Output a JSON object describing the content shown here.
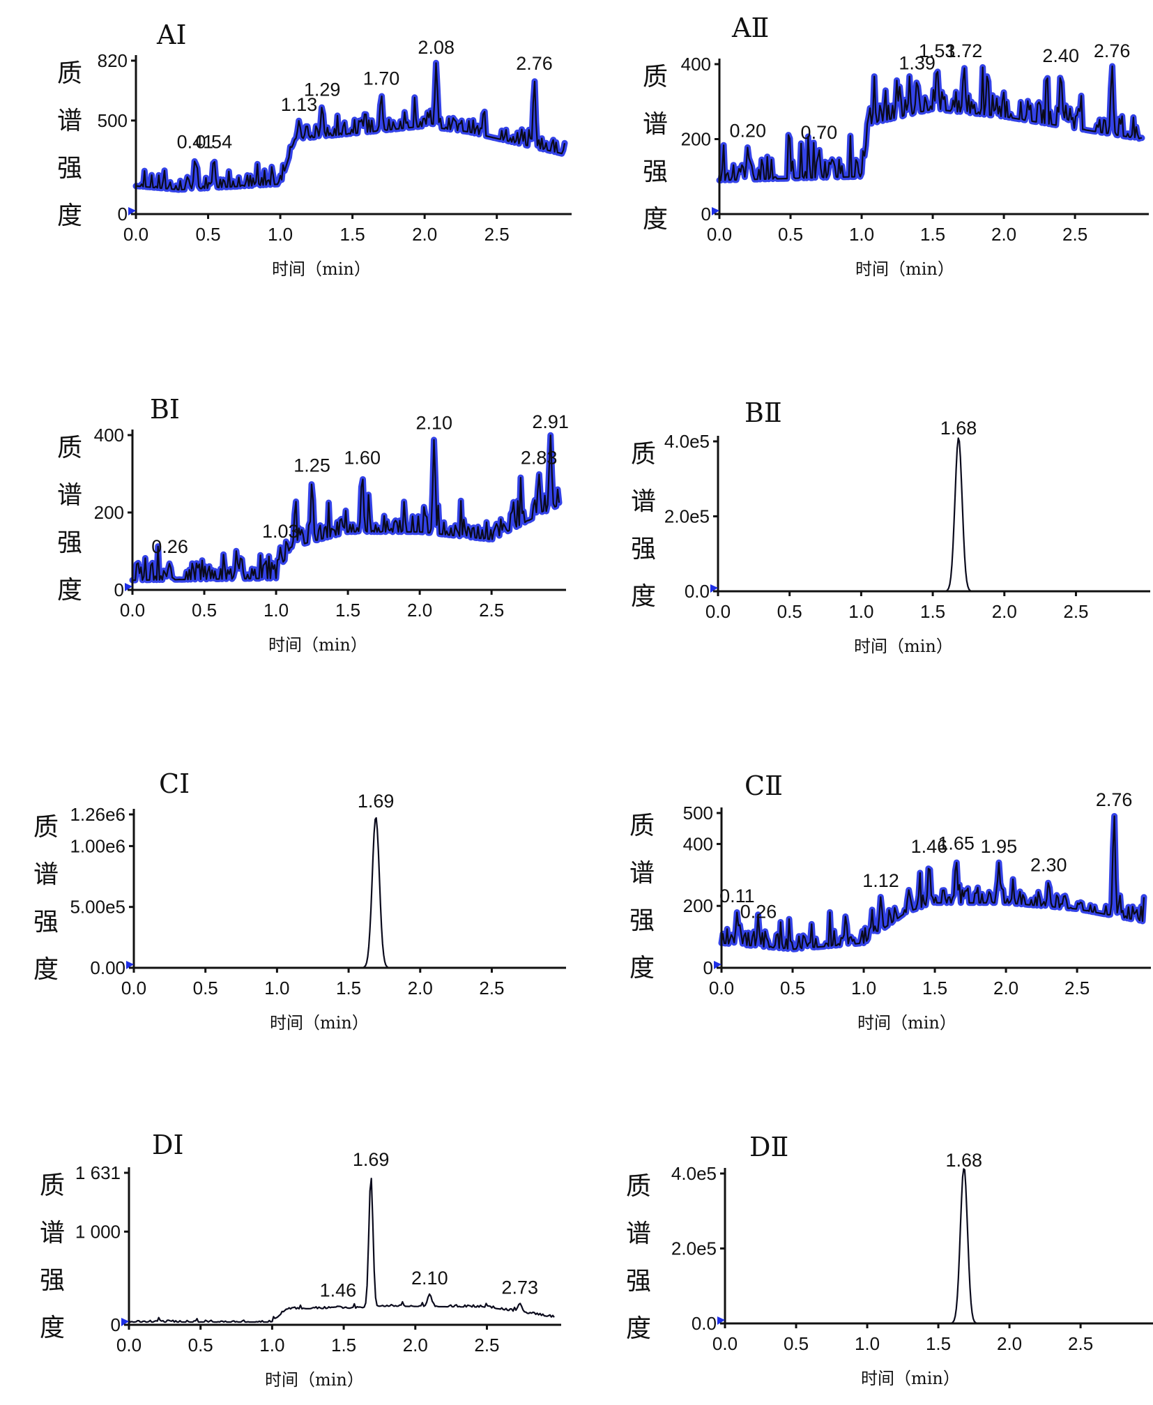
{
  "x_axis_label": "时间（min）",
  "y_axis_label_chars": [
    "质",
    "谱",
    "强",
    "度"
  ],
  "colors": {
    "trace_band": "#1e2fe6",
    "trace_line": "#0a0a1c",
    "axis": "#111111"
  },
  "chart_data": [
    {
      "type": "line",
      "title": "AⅠ",
      "x_ticks": [
        "0.0",
        "0.5",
        "1.0",
        "1.5",
        "2.0",
        "2.5"
      ],
      "y_ticks": [
        {
          "value": 0,
          "label": "0"
        },
        {
          "value": 500,
          "label": "500"
        },
        {
          "value": 820,
          "label": "820"
        }
      ],
      "xlim": [
        0,
        2.97
      ],
      "ylim": [
        0,
        820
      ],
      "peaks": [
        {
          "x": 0.41,
          "y": 300,
          "label": "0.41"
        },
        {
          "x": 0.54,
          "y": 300,
          "label": "0.54"
        },
        {
          "x": 1.13,
          "y": 500,
          "label": "1.13"
        },
        {
          "x": 1.29,
          "y": 580,
          "label": "1.29"
        },
        {
          "x": 1.7,
          "y": 640,
          "label": "1.70"
        },
        {
          "x": 2.08,
          "y": 810,
          "label": "2.08"
        },
        {
          "x": 2.76,
          "y": 720,
          "label": "2.76"
        }
      ],
      "noise": true,
      "baseline": [
        [
          0,
          150
        ],
        [
          0.3,
          130
        ],
        [
          1.0,
          160
        ],
        [
          1.1,
          400
        ],
        [
          1.5,
          430
        ],
        [
          2.0,
          470
        ],
        [
          2.3,
          440
        ],
        [
          2.97,
          320
        ]
      ],
      "noise_amp": 70
    },
    {
      "type": "line",
      "title": "AⅡ",
      "x_ticks": [
        "0.0",
        "0.5",
        "1.0",
        "1.5",
        "2.0",
        "2.5"
      ],
      "y_ticks": [
        {
          "value": 0,
          "label": "0"
        },
        {
          "value": 200,
          "label": "200"
        },
        {
          "value": 400,
          "label": "400"
        }
      ],
      "xlim": [
        0,
        2.97
      ],
      "ylim": [
        0,
        400
      ],
      "peaks": [
        {
          "x": 0.2,
          "y": 180,
          "label": "0.20"
        },
        {
          "x": 0.7,
          "y": 175,
          "label": "0.70"
        },
        {
          "x": 1.39,
          "y": 360,
          "label": "1.39"
        },
        {
          "x": 1.53,
          "y": 395,
          "label": "1.53"
        },
        {
          "x": 1.72,
          "y": 395,
          "label": "1.72"
        },
        {
          "x": 2.4,
          "y": 380,
          "label": "2.40"
        },
        {
          "x": 2.76,
          "y": 400,
          "label": "2.76"
        }
      ],
      "noise": true,
      "baseline": [
        [
          0,
          90
        ],
        [
          1.0,
          100
        ],
        [
          1.05,
          240
        ],
        [
          1.5,
          280
        ],
        [
          2.0,
          260
        ],
        [
          2.97,
          200
        ]
      ],
      "noise_amp": 55
    },
    {
      "type": "line",
      "title": "BⅠ",
      "x_ticks": [
        "0.0",
        "0.5",
        "1.0",
        "1.5",
        "2.0",
        "2.5"
      ],
      "y_ticks": [
        {
          "value": 0,
          "label": "0"
        },
        {
          "value": 200,
          "label": "200"
        },
        {
          "value": 400,
          "label": "400"
        }
      ],
      "xlim": [
        0,
        2.97
      ],
      "ylim": [
        0,
        400
      ],
      "peaks": [
        {
          "x": 0.26,
          "y": 70,
          "label": "0.26"
        },
        {
          "x": 1.03,
          "y": 110,
          "label": "1.03"
        },
        {
          "x": 1.25,
          "y": 280,
          "label": "1.25"
        },
        {
          "x": 1.6,
          "y": 300,
          "label": "1.60"
        },
        {
          "x": 2.1,
          "y": 390,
          "label": "2.10"
        },
        {
          "x": 2.83,
          "y": 300,
          "label": "2.83"
        },
        {
          "x": 2.91,
          "y": 400,
          "label": "2.91"
        }
      ],
      "noise": true,
      "baseline": [
        [
          0,
          25
        ],
        [
          1.0,
          30
        ],
        [
          1.1,
          110
        ],
        [
          1.5,
          150
        ],
        [
          2.0,
          150
        ],
        [
          2.5,
          130
        ],
        [
          2.97,
          220
        ]
      ],
      "noise_amp": 45
    },
    {
      "type": "line",
      "title": "BⅡ",
      "x_ticks": [
        "0.0",
        "0.5",
        "1.0",
        "1.5",
        "2.0",
        "2.5"
      ],
      "y_ticks": [
        {
          "value": 0,
          "label": "0.0"
        },
        {
          "value": 200000,
          "label": "2.0e5"
        },
        {
          "value": 400000,
          "label": "4.0e5"
        }
      ],
      "xlim": [
        0,
        2.97
      ],
      "ylim": [
        0,
        400000
      ],
      "peaks": [
        {
          "x": 1.68,
          "y": 410000,
          "label": "1.68"
        }
      ],
      "noise": false,
      "peak_width": 0.035
    },
    {
      "type": "line",
      "title": "CⅠ",
      "x_ticks": [
        "0.0",
        "0.5",
        "1.0",
        "1.5",
        "2.0",
        "2.5"
      ],
      "y_ticks": [
        {
          "value": 0,
          "label": "0.00"
        },
        {
          "value": 500000,
          "label": "5.00e5"
        },
        {
          "value": 1000000,
          "label": "1.00e6"
        },
        {
          "value": 1260000,
          "label": "1.26e6"
        }
      ],
      "xlim": [
        0,
        2.97
      ],
      "ylim": [
        0,
        1260000
      ],
      "peaks": [
        {
          "x": 1.69,
          "y": 1240000,
          "label": "1.69"
        }
      ],
      "noise": false,
      "peak_width": 0.035
    },
    {
      "type": "line",
      "title": "CⅡ",
      "x_ticks": [
        "0.0",
        "0.5",
        "1.0",
        "1.5",
        "2.0",
        "2.5"
      ],
      "y_ticks": [
        {
          "value": 0,
          "label": "0"
        },
        {
          "value": 200,
          "label": "200"
        },
        {
          "value": 400,
          "label": "400"
        },
        {
          "value": 500,
          "label": "500"
        }
      ],
      "xlim": [
        0,
        2.97
      ],
      "ylim": [
        0,
        500
      ],
      "peaks": [
        {
          "x": 0.11,
          "y": 180,
          "label": "0.11"
        },
        {
          "x": 0.26,
          "y": 130,
          "label": "0.26"
        },
        {
          "x": 1.12,
          "y": 230,
          "label": "1.12"
        },
        {
          "x": 1.46,
          "y": 340,
          "label": "1.46"
        },
        {
          "x": 1.65,
          "y": 350,
          "label": "1.65"
        },
        {
          "x": 1.95,
          "y": 340,
          "label": "1.95"
        },
        {
          "x": 2.3,
          "y": 280,
          "label": "2.30"
        },
        {
          "x": 2.76,
          "y": 500,
          "label": "2.76"
        }
      ],
      "noise": true,
      "baseline": [
        [
          0,
          80
        ],
        [
          0.5,
          60
        ],
        [
          1.0,
          80
        ],
        [
          1.3,
          180
        ],
        [
          1.5,
          210
        ],
        [
          2.0,
          210
        ],
        [
          2.5,
          190
        ],
        [
          2.97,
          150
        ]
      ],
      "noise_amp": 50
    },
    {
      "type": "line",
      "title": "DⅠ",
      "x_ticks": [
        "0.0",
        "0.5",
        "1.0",
        "1.5",
        "2.0",
        "2.5"
      ],
      "y_ticks": [
        {
          "value": 0,
          "label": "0"
        },
        {
          "value": 1000,
          "label": "1 000"
        },
        {
          "value": 1631,
          "label": "1 631"
        }
      ],
      "xlim": [
        0,
        2.97
      ],
      "ylim": [
        0,
        1631
      ],
      "peaks": [
        {
          "x": 1.46,
          "y": 200,
          "label": "1.46"
        },
        {
          "x": 1.69,
          "y": 1600,
          "label": "1.69"
        },
        {
          "x": 2.1,
          "y": 330,
          "label": "2.10"
        },
        {
          "x": 2.73,
          "y": 230,
          "label": "2.73"
        }
      ],
      "noise": true,
      "line_only": true,
      "baseline": [
        [
          0,
          30
        ],
        [
          1.0,
          30
        ],
        [
          1.1,
          170
        ],
        [
          1.6,
          180
        ],
        [
          1.8,
          200
        ],
        [
          2.5,
          190
        ],
        [
          2.97,
          80
        ]
      ],
      "noise_amp": 20,
      "peak_width": 0.02
    },
    {
      "type": "line",
      "title": "DⅡ",
      "x_ticks": [
        "0.0",
        "0.5",
        "1.0",
        "1.5",
        "2.0",
        "2.5"
      ],
      "y_ticks": [
        {
          "value": 0,
          "label": "0.0"
        },
        {
          "value": 200000,
          "label": "2.0e5"
        },
        {
          "value": 400000,
          "label": "4.0e5"
        }
      ],
      "xlim": [
        0,
        2.97
      ],
      "ylim": [
        0,
        400000
      ],
      "peaks": [
        {
          "x": 1.68,
          "y": 420000,
          "label": "1.68"
        }
      ],
      "noise": false,
      "peak_width": 0.035
    }
  ]
}
